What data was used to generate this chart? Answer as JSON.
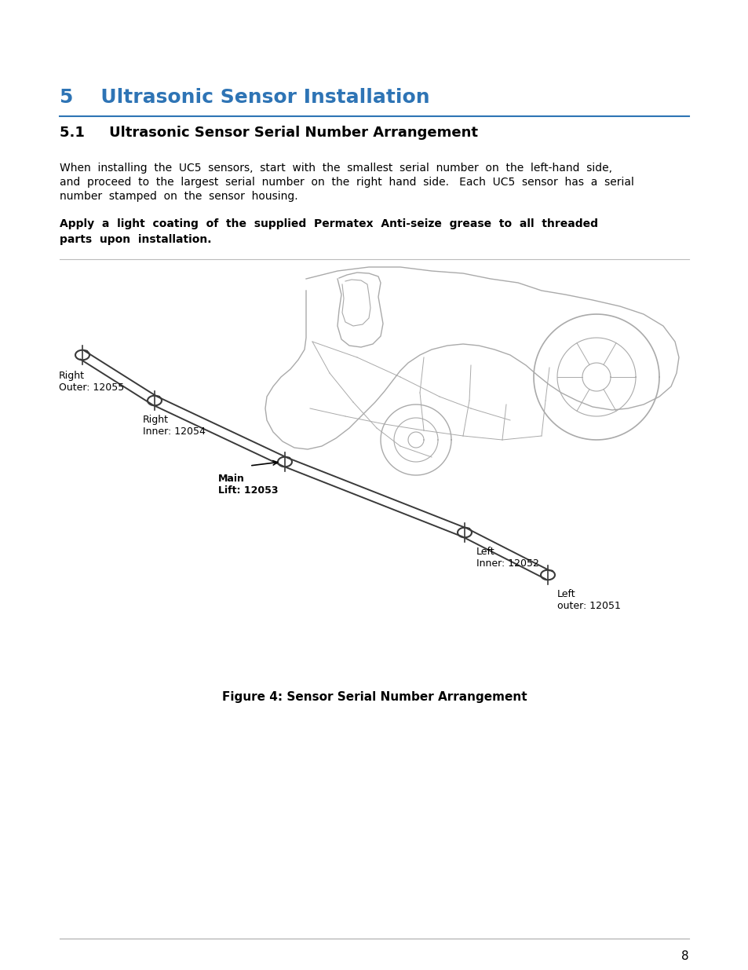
{
  "page_bg": "#ffffff",
  "section_title": "5    Ultrasonic Sensor Installation",
  "section_title_color": "#2E74B5",
  "section_title_size": 18,
  "subsection_title": "5.1     Ultrasonic Sensor Serial Number Arrangement",
  "subsection_title_size": 13,
  "body_text_line1": "When  installing  the  UC5  sensors,  start  with  the  smallest  serial  number  on  the  left-hand  side,",
  "body_text_line2": "and  proceed  to  the  largest  serial  number  on  the  right  hand  side.   Each  UC5  sensor  has  a  serial",
  "body_text_line3": "number  stamped  on  the  sensor  housing.",
  "bold_text_line1": "Apply  a  light  coating  of  the  supplied  Permatex  Anti-seize  grease  to  all  threaded",
  "bold_text_line2": "parts  upon  installation.",
  "figure_caption": "Figure 4: Sensor Serial Number Arrangement",
  "page_number": "8",
  "label_right_outer": "Right\nOuter: 12055",
  "label_right_inner": "Right\nInner: 12054",
  "label_main_lift": "Main\nLift: 12053",
  "label_left_inner": "Left\nInner: 12052",
  "label_left_outer": "Left\nouter: 12051",
  "diagram_color": "#3a3a3a",
  "diagram_light": "#aaaaaa"
}
